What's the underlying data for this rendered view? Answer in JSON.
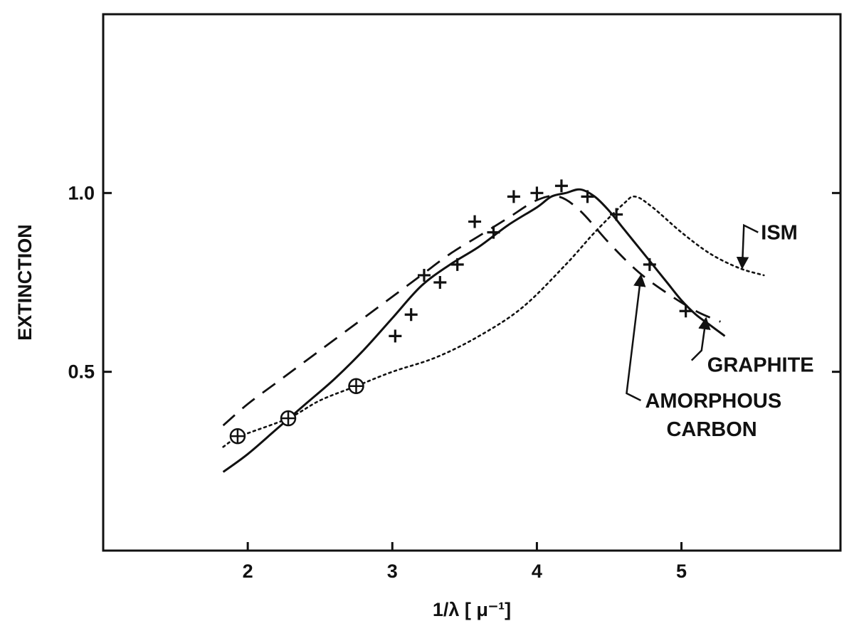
{
  "chart_data": {
    "type": "line",
    "title": "",
    "xlabel": "1/λ [ μ⁻¹]",
    "ylabel": "EXTINCTION",
    "xlim": [
      1.0,
      6.1
    ],
    "ylim": [
      0.0,
      1.5
    ],
    "x_ticks": [
      2,
      3,
      4,
      5
    ],
    "x_tick_labels": [
      "2",
      "3",
      "4",
      "5"
    ],
    "y_ticks": [
      0.5,
      1.0
    ],
    "y_tick_labels": [
      "0.5",
      "1.0"
    ],
    "grid": false,
    "series": [
      {
        "name": "GRAPHITE",
        "style": "solid",
        "x": [
          1.83,
          2.0,
          2.2,
          2.4,
          2.6,
          2.8,
          3.0,
          3.2,
          3.4,
          3.6,
          3.8,
          4.0,
          4.1,
          4.2,
          4.3,
          4.4,
          4.5,
          4.6,
          4.7,
          4.8,
          4.9,
          5.0,
          5.1,
          5.2,
          5.3
        ],
        "y": [
          0.22,
          0.27,
          0.34,
          0.41,
          0.48,
          0.56,
          0.65,
          0.74,
          0.8,
          0.85,
          0.91,
          0.96,
          0.99,
          1.0,
          1.01,
          0.99,
          0.95,
          0.9,
          0.85,
          0.8,
          0.75,
          0.7,
          0.66,
          0.63,
          0.6
        ]
      },
      {
        "name": "AMORPHOUS CARBON",
        "style": "dashed",
        "x": [
          1.83,
          2.0,
          2.2,
          2.5,
          2.8,
          3.0,
          3.2,
          3.4,
          3.6,
          3.8,
          4.0,
          4.15,
          4.3,
          4.5,
          4.7,
          4.9,
          5.1,
          5.27
        ],
        "y": [
          0.35,
          0.41,
          0.47,
          0.56,
          0.65,
          0.71,
          0.77,
          0.83,
          0.88,
          0.93,
          0.98,
          0.99,
          0.95,
          0.86,
          0.78,
          0.72,
          0.67,
          0.64
        ]
      },
      {
        "name": "ISM",
        "style": "dotted",
        "x": [
          1.83,
          1.95,
          2.28,
          2.5,
          2.75,
          3.0,
          3.3,
          3.6,
          3.9,
          4.2,
          4.4,
          4.6,
          4.68,
          4.8,
          5.0,
          5.2,
          5.4,
          5.57
        ],
        "y": [
          0.29,
          0.32,
          0.37,
          0.42,
          0.46,
          0.5,
          0.54,
          0.6,
          0.68,
          0.8,
          0.89,
          0.97,
          0.99,
          0.96,
          0.89,
          0.83,
          0.79,
          0.77
        ]
      }
    ],
    "ism_points": {
      "marker": "circled-plus",
      "x": [
        1.93,
        2.28,
        2.75
      ],
      "y": [
        0.32,
        0.37,
        0.46
      ]
    },
    "measured_points": {
      "marker": "plus",
      "x": [
        3.02,
        3.13,
        3.22,
        3.33,
        3.45,
        3.57,
        3.7,
        3.84,
        4.0,
        4.17,
        4.35,
        4.55,
        4.78,
        5.03
      ],
      "y": [
        0.6,
        0.66,
        0.77,
        0.75,
        0.8,
        0.92,
        0.89,
        0.99,
        1.0,
        1.02,
        0.99,
        0.94,
        0.8,
        0.67
      ]
    },
    "annotations": [
      {
        "id": "ism",
        "text": "ISM",
        "x": 5.55,
        "y": 0.87,
        "arrow_to_x": 5.42,
        "arrow_to_y": 0.79
      },
      {
        "id": "graphite",
        "text": "GRAPHITE",
        "x": 5.08,
        "y": 0.52,
        "arrow_to_x": 5.17,
        "arrow_to_y": 0.65
      },
      {
        "id": "amorphous",
        "line1": "AMORPHOUS",
        "line2": "CARBON",
        "x": 4.65,
        "y": 0.4,
        "arrow_to_x": 4.72,
        "arrow_to_y": 0.77
      }
    ]
  }
}
